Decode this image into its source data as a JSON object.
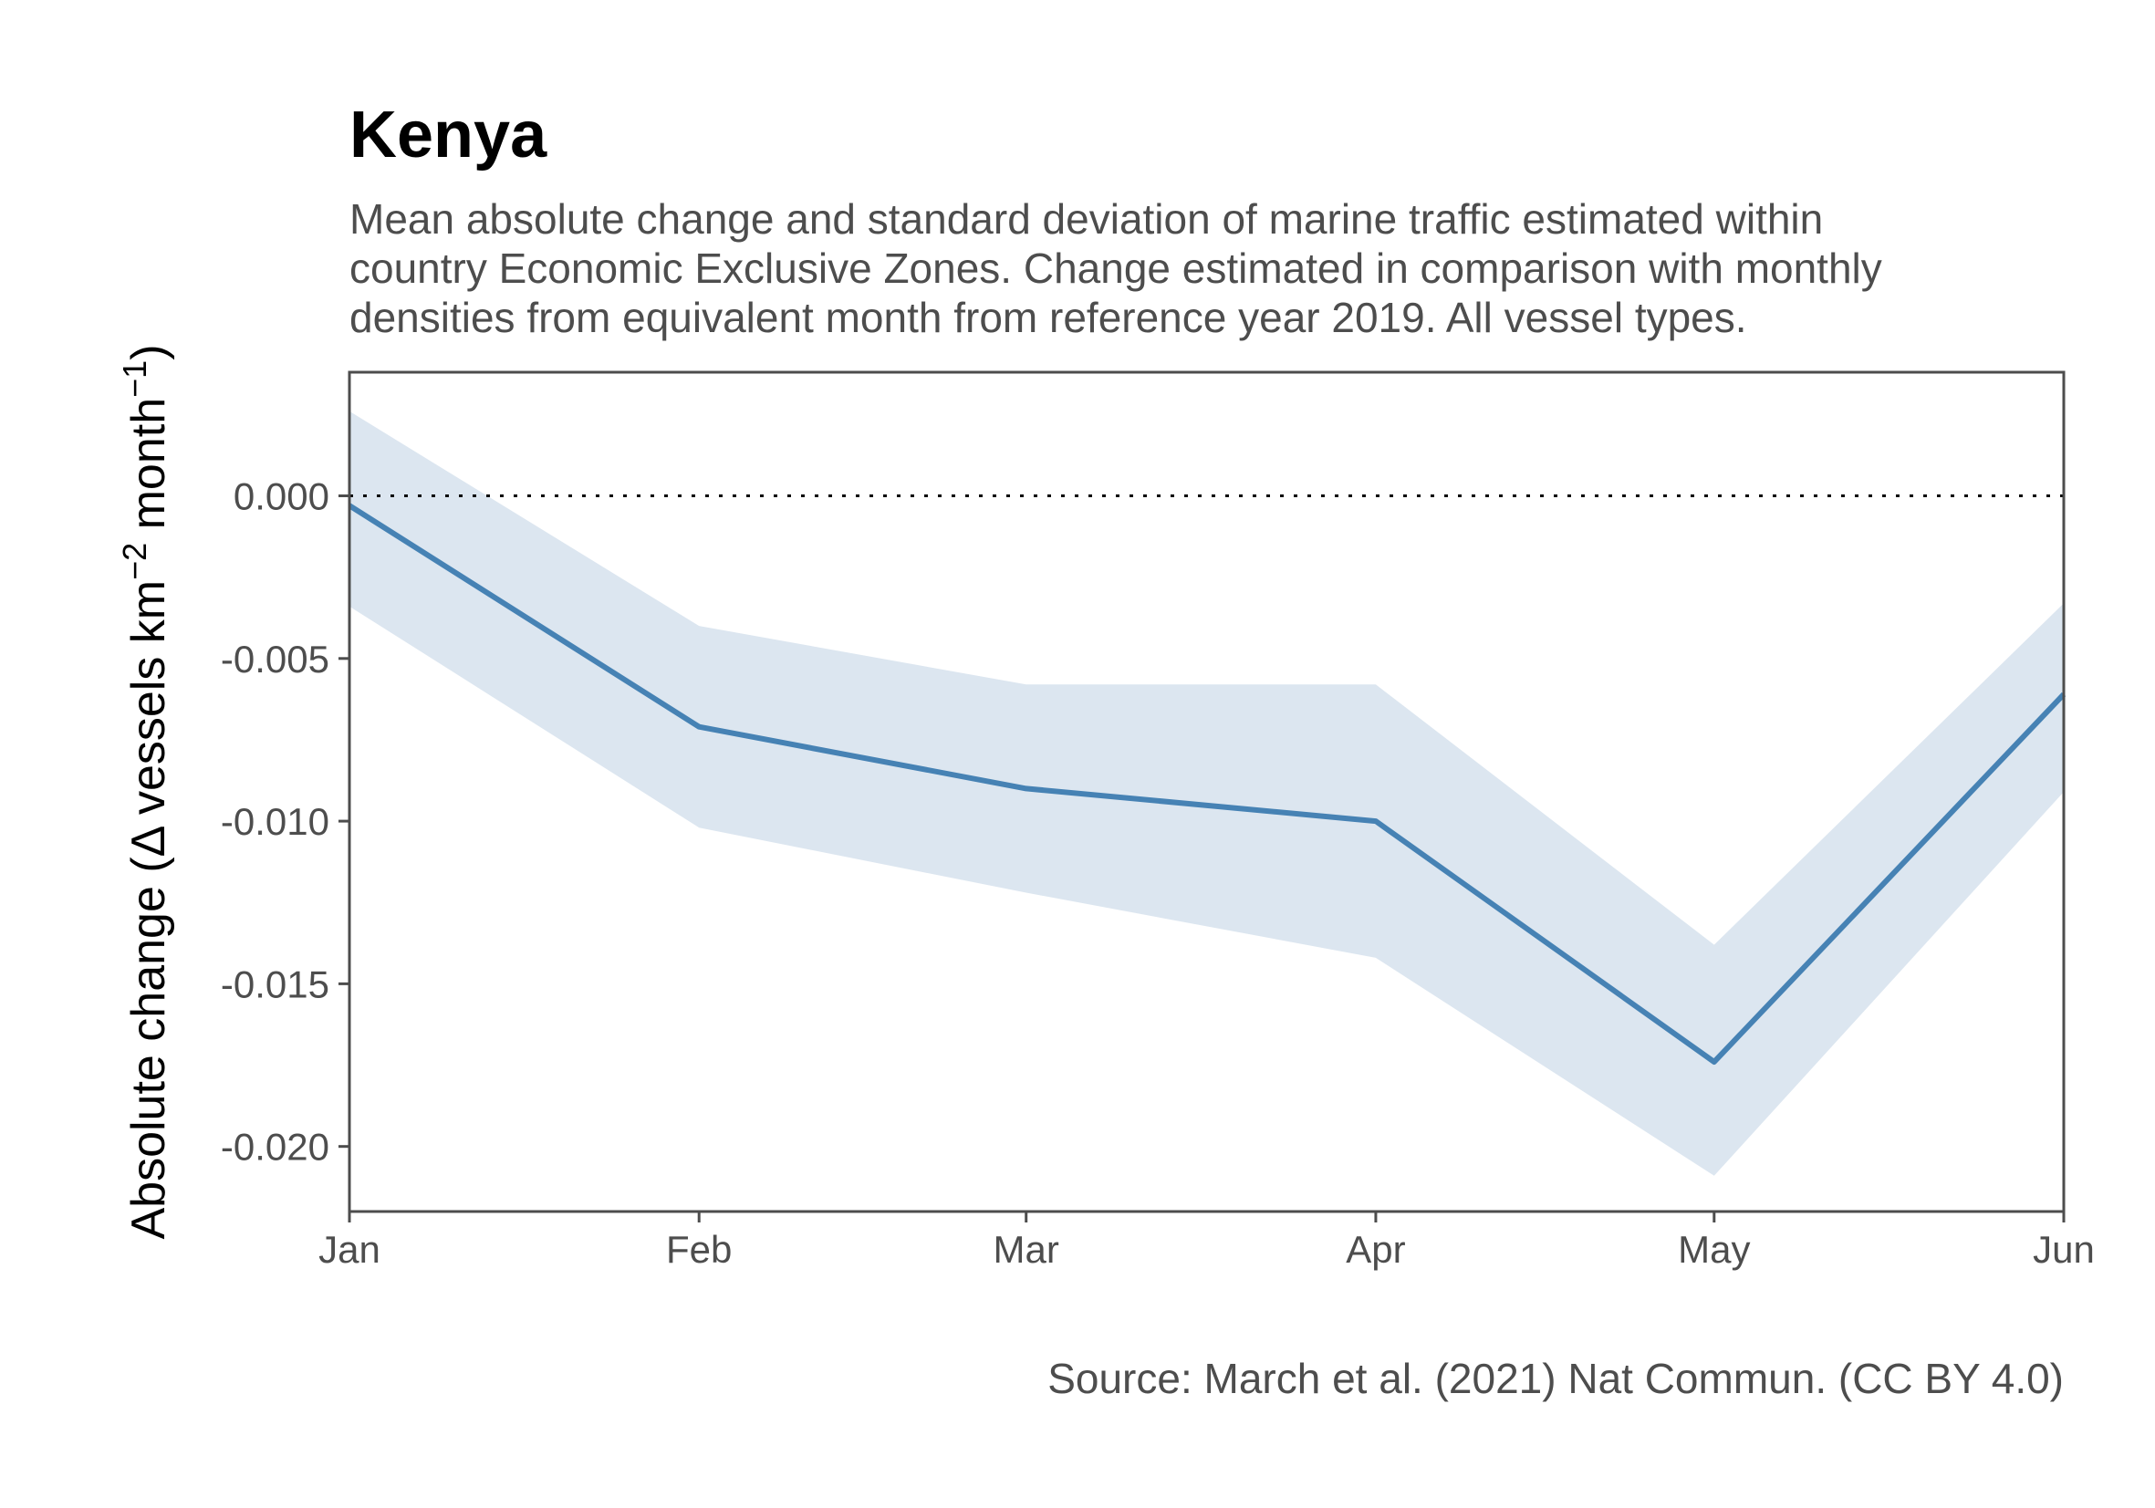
{
  "chart_data": {
    "type": "line",
    "title": "Kenya",
    "subtitle": [
      "Mean absolute change and standard deviation of marine traffic estimated within",
      "country Economic Exclusive Zones. Change estimated in comparison with monthly",
      "densities from equivalent month from reference year 2019. All vessel types."
    ],
    "ylabel": {
      "prefix": "Absolute change (",
      "delta": "Δ",
      "part1": " vessels km",
      "sup1": "−2",
      "part2": " month",
      "sup2": "−1",
      "suffix": ")"
    },
    "xlabel": "",
    "categories": [
      "Jan",
      "Feb",
      "Mar",
      "Apr",
      "May",
      "Jun"
    ],
    "x_days": [
      1,
      32,
      61,
      92,
      122,
      153
    ],
    "series": [
      {
        "values": [
          -0.0003,
          -0.0071,
          -0.009,
          -0.01,
          -0.0174,
          -0.0061
        ],
        "lower": [
          -0.0034,
          -0.0102,
          -0.0122,
          -0.0142,
          -0.0209,
          -0.0091
        ],
        "upper": [
          0.0026,
          -0.004,
          -0.0058,
          -0.0058,
          -0.0138,
          -0.0033
        ]
      }
    ],
    "yticks": [
      0.0,
      -0.005,
      -0.01,
      -0.015,
      -0.02
    ],
    "ytick_labels": [
      "0.000",
      "-0.005",
      "-0.010",
      "-0.015",
      "-0.020"
    ],
    "ylim": [
      -0.022,
      0.0038
    ],
    "reference_line": 0,
    "grid": false,
    "caption": "Source: March et al. (2021) Nat Commun. (CC BY 4.0)",
    "colors": {
      "line": "#4682b4",
      "ribbon": "#dce6f0",
      "axis": "#4d4d4d"
    }
  }
}
